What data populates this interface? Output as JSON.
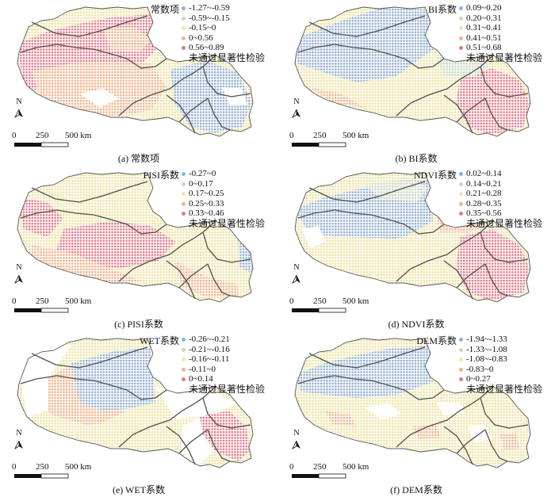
{
  "colors": {
    "boundary": "#555555",
    "river": "#505050",
    "patterns": {
      "red": "#e27d8d",
      "orange": "#efb38a",
      "yellow": "#eee3a3",
      "sage": "#c7d7bf",
      "blue": "#96b1d1",
      "white": "#ffffff"
    }
  },
  "panels": [
    {
      "caption": "(a) 常数项",
      "legend_title": "常数项",
      "legend": [
        {
          "label": "-1.27~-0.59",
          "color": "#8fb0d8"
        },
        {
          "label": "-0.59~-0.15",
          "color": "#c9d9c0"
        },
        {
          "label": "-0.15~0",
          "color": "#efe7a8"
        },
        {
          "label": "0~0.56",
          "color": "#f2b38a"
        },
        {
          "label": "0.56~0.89",
          "color": "#e07a8a"
        }
      ],
      "not_significant": "未通过显著性检验",
      "scale_labels": [
        "0",
        "250",
        "500 km"
      ],
      "north": "N"
    },
    {
      "caption": "(b) BI系数",
      "legend_title": "BI系数",
      "legend": [
        {
          "label": "0.09~0.20",
          "color": "#8fb0d8"
        },
        {
          "label": "0.20~0.31",
          "color": "#c9d9c0"
        },
        {
          "label": "0.31~0.41",
          "color": "#efe7a8"
        },
        {
          "label": "0.41~0.51",
          "color": "#f2b38a"
        },
        {
          "label": "0.51~0.68",
          "color": "#e07a8a"
        }
      ],
      "not_significant": "未通过显著性检验",
      "scale_labels": [
        "0",
        "250",
        "500 km"
      ],
      "north": "N"
    },
    {
      "caption": "(c) PISI系数",
      "legend_title": "PISI系数",
      "legend": [
        {
          "label": "-0.27~0",
          "color": "#8fb0d8"
        },
        {
          "label": "0~0.17",
          "color": "#c9d9c0"
        },
        {
          "label": "0.17~0.25",
          "color": "#efe7a8"
        },
        {
          "label": "0.25~0.33",
          "color": "#f2b38a"
        },
        {
          "label": "0.33~0.46",
          "color": "#e07a8a"
        }
      ],
      "not_significant": "未通过显著性检验",
      "scale_labels": [
        "0",
        "250",
        "500 km"
      ],
      "north": "N"
    },
    {
      "caption": "(d) NDVI系数",
      "legend_title": "NDVI系数",
      "legend": [
        {
          "label": "0.02~0.14",
          "color": "#8fb0d8"
        },
        {
          "label": "0.14~0.21",
          "color": "#c9d9c0"
        },
        {
          "label": "0.21~0.28",
          "color": "#efe7a8"
        },
        {
          "label": "0.28~0.35",
          "color": "#f2b38a"
        },
        {
          "label": "0.35~0.56",
          "color": "#e07a8a"
        }
      ],
      "not_significant": "未通过显著性检验",
      "scale_labels": [
        "0",
        "250",
        "500 km"
      ],
      "north": "N"
    },
    {
      "caption": "(e) WET系数",
      "legend_title": "WET系数",
      "legend": [
        {
          "label": "-0.26~-0.21",
          "color": "#8fb0d8"
        },
        {
          "label": "-0.21~-0.16",
          "color": "#c9d9c0"
        },
        {
          "label": "-0.16~-0.11",
          "color": "#efe7a8"
        },
        {
          "label": "-0.11~0",
          "color": "#f2b38a"
        },
        {
          "label": "0~0.14",
          "color": "#e07a8a"
        }
      ],
      "not_significant": "未通过显著性检验",
      "scale_labels": [
        "0",
        "250",
        "500 km"
      ],
      "north": "N"
    },
    {
      "caption": "(f) DEM系数",
      "legend_title": "DEM系数",
      "legend": [
        {
          "label": "-1.94~-1.33",
          "color": "#8fb0d8"
        },
        {
          "label": "-1.33~-1.08",
          "color": "#c9d9c0"
        },
        {
          "label": "-1.08~-0.83",
          "color": "#efe7a8"
        },
        {
          "label": "-0.83~0",
          "color": "#f2b38a"
        },
        {
          "label": "0~0.27",
          "color": "#e07a8a"
        }
      ],
      "not_significant": "未通过显著性检验",
      "scale_labels": [
        "0",
        "250",
        "500 km"
      ],
      "north": "N"
    }
  ]
}
